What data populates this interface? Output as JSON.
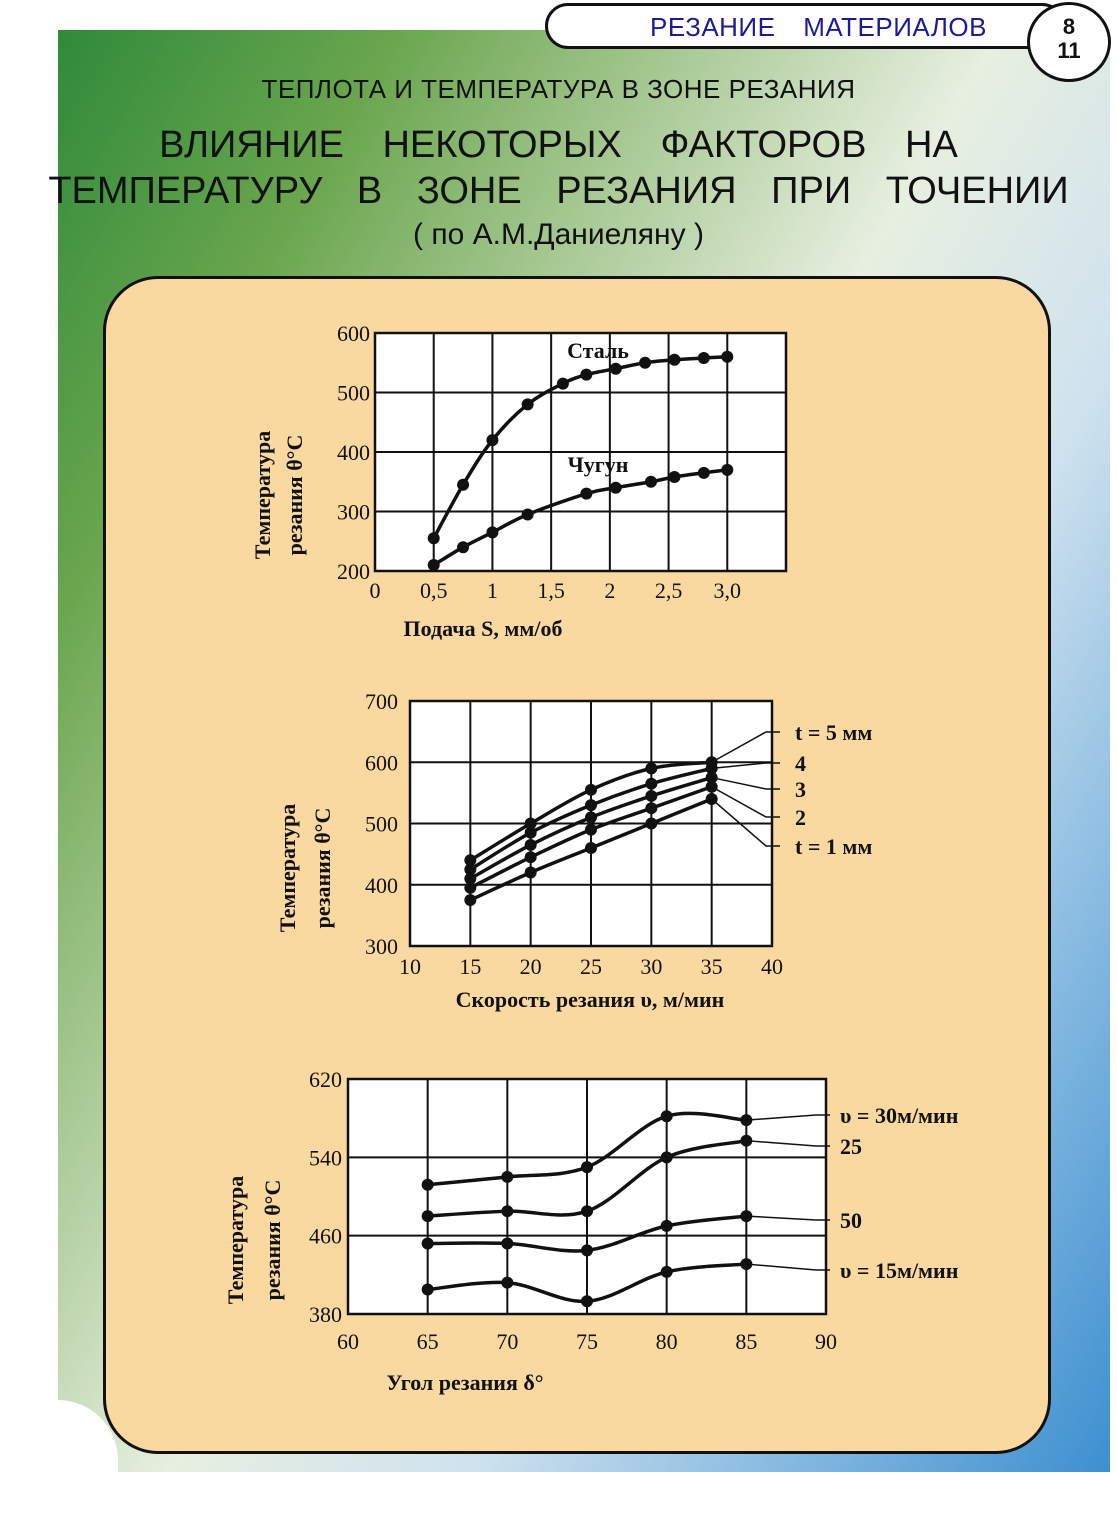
{
  "header": {
    "section": "РЕЗАНИЕ МАТЕРИАЛОВ",
    "page_top": "8",
    "page_bottom": "11"
  },
  "topic": "ТЕПЛОТА И ТЕМПЕРАТУРА В ЗОНЕ РЕЗАНИЯ",
  "title_line1": "ВЛИЯНИЕ НЕКОТОРЫХ ФАКТОРОВ НА",
  "title_line2": "ТЕМПЕРАТУРУ В ЗОНЕ РЕЗАНИЯ ПРИ ТОЧЕНИИ",
  "source": "( по А.М.Даниеляну )",
  "colors": {
    "panel": "#fad9a0",
    "chart_bg": "#ffffff",
    "ink": "#111111",
    "accent_text": "#1a1a9a"
  },
  "chart_data": [
    {
      "type": "line",
      "ylabel_line1": "Температура",
      "ylabel_line2": "резания θ°C",
      "xlabel": "Подача S, мм/об",
      "xlim": [
        0,
        3.5
      ],
      "ylim": [
        200,
        600
      ],
      "xticks": [
        0,
        0.5,
        1,
        1.5,
        2,
        2.5,
        3.0
      ],
      "xtick_labels": [
        "0",
        "0,5",
        "1",
        "1,5",
        "2",
        "2,5",
        "3,0"
      ],
      "yticks": [
        200,
        300,
        400,
        500,
        600
      ],
      "series": [
        {
          "name": "Сталь",
          "x": [
            0.5,
            0.75,
            1.0,
            1.3,
            1.6,
            1.8,
            2.05,
            2.3,
            2.55,
            2.8,
            3.0
          ],
          "y": [
            255,
            345,
            420,
            480,
            515,
            530,
            540,
            550,
            555,
            558,
            560
          ]
        },
        {
          "name": "Чугун",
          "x": [
            0.5,
            0.75,
            1.0,
            1.3,
            1.8,
            2.05,
            2.35,
            2.55,
            2.8,
            3.0
          ],
          "y": [
            210,
            240,
            265,
            295,
            330,
            340,
            350,
            358,
            365,
            370
          ]
        }
      ]
    },
    {
      "type": "line",
      "ylabel_line1": "Температура",
      "ylabel_line2": "резания θ°C",
      "xlabel": "Скорость резания υ, м/мин",
      "xlim": [
        10,
        40
      ],
      "ylim": [
        300,
        700
      ],
      "xticks": [
        10,
        15,
        20,
        25,
        30,
        35,
        40
      ],
      "yticks": [
        300,
        400,
        500,
        600,
        700
      ],
      "series": [
        {
          "name": "t = 5 мм",
          "x": [
            15,
            20,
            25,
            30,
            35
          ],
          "y": [
            440,
            500,
            555,
            590,
            600
          ]
        },
        {
          "name": "4",
          "x": [
            15,
            20,
            25,
            30,
            35
          ],
          "y": [
            425,
            485,
            530,
            565,
            590
          ]
        },
        {
          "name": "3",
          "x": [
            15,
            20,
            25,
            30,
            35
          ],
          "y": [
            410,
            465,
            510,
            545,
            575
          ]
        },
        {
          "name": "2",
          "x": [
            15,
            20,
            25,
            30,
            35
          ],
          "y": [
            395,
            445,
            490,
            525,
            560
          ]
        },
        {
          "name": "t = 1 мм",
          "x": [
            15,
            20,
            25,
            30,
            35
          ],
          "y": [
            375,
            420,
            460,
            500,
            540
          ]
        }
      ]
    },
    {
      "type": "line",
      "ylabel_line1": "Температура",
      "ylabel_line2": "резания θ°C",
      "xlabel": "Угол резания δ°",
      "xlim": [
        60,
        90
      ],
      "ylim": [
        380,
        620
      ],
      "xticks": [
        60,
        65,
        70,
        75,
        80,
        85,
        90
      ],
      "yticks": [
        380,
        460,
        540,
        620
      ],
      "series": [
        {
          "name": "υ = 30м/мин",
          "x": [
            65,
            70,
            75,
            80,
            85
          ],
          "y": [
            512,
            520,
            530,
            582,
            578
          ]
        },
        {
          "name": "25",
          "x": [
            65,
            70,
            75,
            80,
            85
          ],
          "y": [
            480,
            485,
            485,
            540,
            557
          ]
        },
        {
          "name": "50",
          "x": [
            65,
            70,
            75,
            80,
            85
          ],
          "y": [
            452,
            452,
            445,
            470,
            480
          ]
        },
        {
          "name": "υ = 15м/мин",
          "x": [
            65,
            70,
            75,
            80,
            85
          ],
          "y": [
            405,
            412,
            393,
            423,
            431
          ]
        }
      ]
    }
  ]
}
